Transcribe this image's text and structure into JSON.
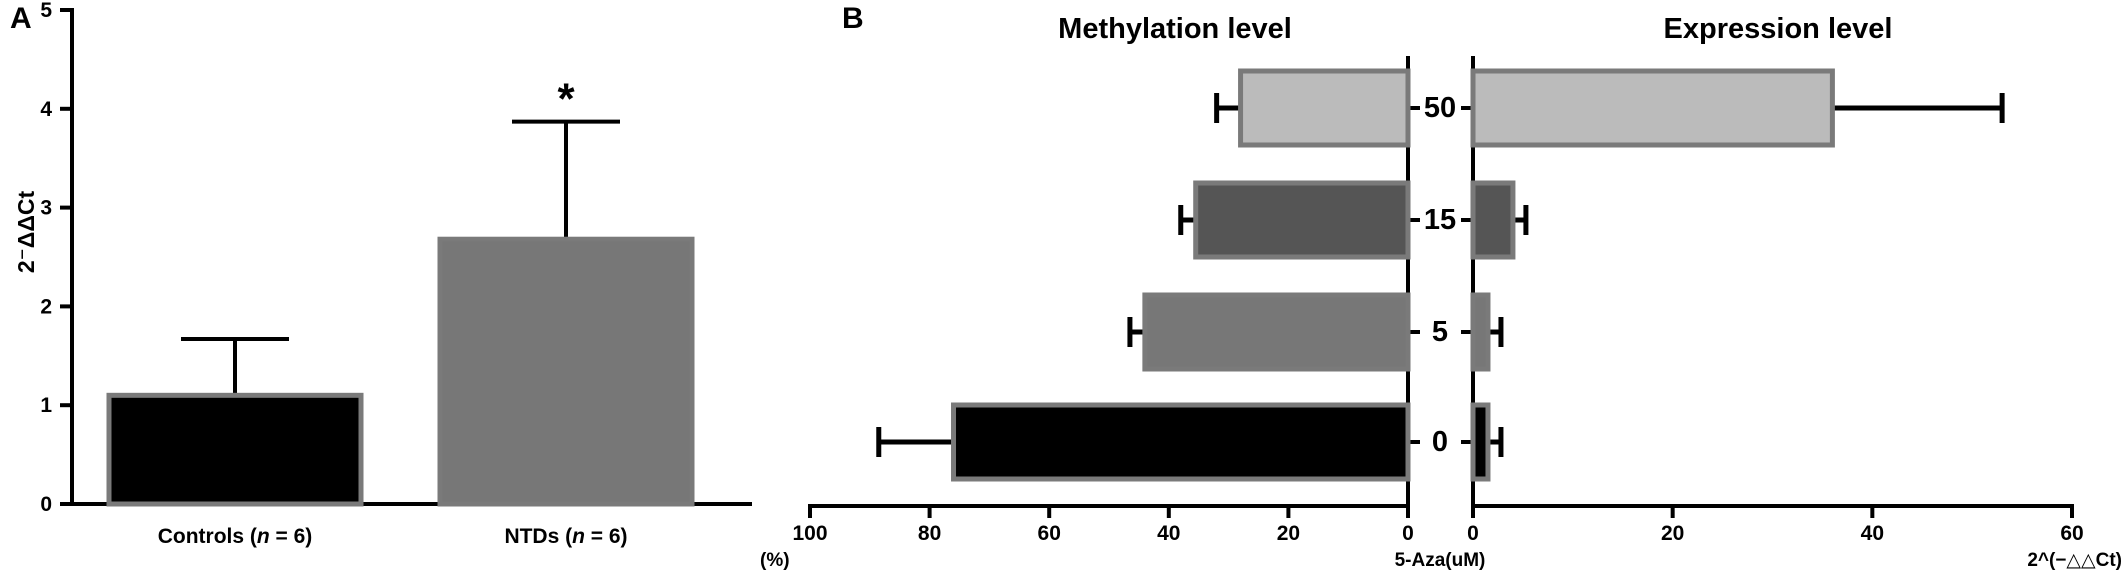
{
  "chart_data": [
    {
      "panel": "A",
      "type": "bar",
      "ylabel": "2⁻ΔΔCt",
      "ylim": [
        0,
        5
      ],
      "yticks": [
        "0",
        "1",
        "2",
        "3",
        "4",
        "5"
      ],
      "categories": [
        {
          "prefix": "Controls (",
          "n": "n",
          "suffix": " = 6)"
        },
        {
          "prefix": "NTDs (",
          "n": "n",
          "suffix": " = 6)"
        }
      ],
      "values": [
        1.1,
        2.68
      ],
      "errors": [
        0.57,
        1.19
      ],
      "colors": [
        "#000000",
        "#777777"
      ],
      "significance": [
        "",
        "*"
      ]
    },
    {
      "panel": "B",
      "type": "bar",
      "orientation": "horizontal",
      "categories": [
        "0",
        "5",
        "15",
        "50"
      ],
      "category_label": "5-Aza(uM)",
      "colors": [
        "#000000",
        "#777777",
        "#555555",
        "#bbbbbb"
      ],
      "methylation": {
        "title": "Methylation level",
        "xlabel": "(%)",
        "xlim": [
          100,
          0
        ],
        "xticks": [
          "100",
          "80",
          "60",
          "40",
          "20",
          "0"
        ],
        "values": [
          76,
          44,
          35.5,
          28
        ],
        "errors": [
          12.5,
          2.5,
          2.5,
          4
        ]
      },
      "expression": {
        "title": "Expression level",
        "xlabel": "2^(−△△Ct)",
        "xlim": [
          0,
          60
        ],
        "xticks": [
          "0",
          "20",
          "40",
          "60"
        ],
        "values": [
          1.5,
          1.5,
          4,
          36
        ],
        "errors": [
          1.3,
          1.3,
          1.3,
          17
        ]
      }
    }
  ]
}
